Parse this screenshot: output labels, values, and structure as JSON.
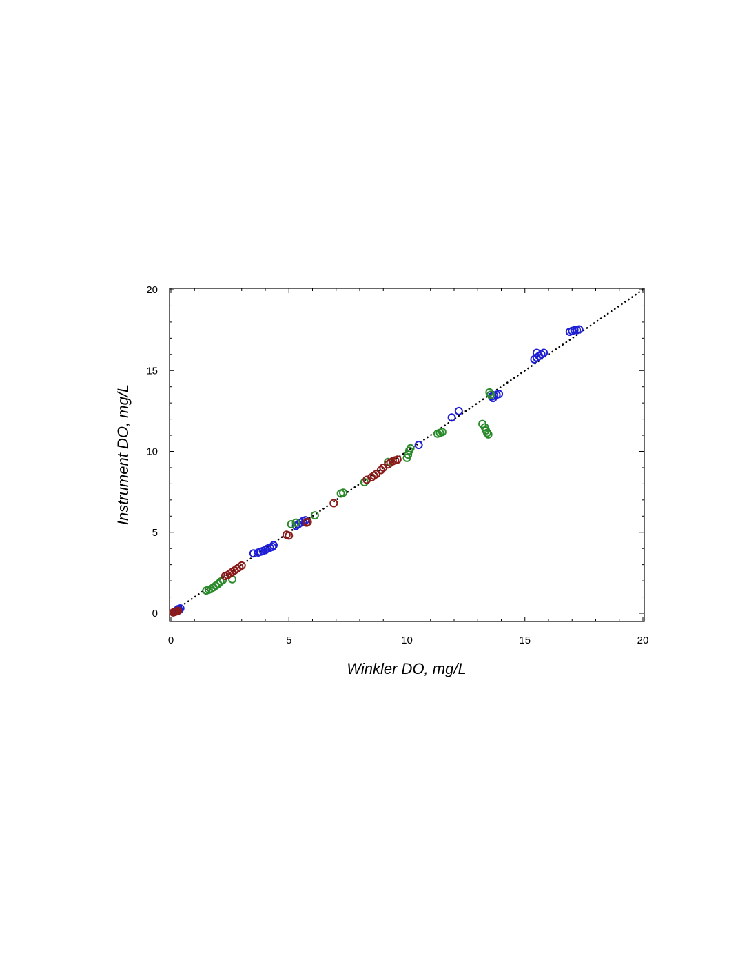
{
  "chart_data": {
    "type": "scatter",
    "title": "",
    "xlabel": "Winkler DO, mg/L",
    "ylabel": "Instrument DO, mg/L",
    "xlim": [
      0,
      20
    ],
    "ylim": [
      0,
      20
    ],
    "x_ticks": [
      "0",
      "5",
      "10",
      "15",
      "20"
    ],
    "y_ticks": [
      "0",
      "5",
      "10",
      "15",
      "20"
    ],
    "grid": false,
    "legend": "none",
    "reference_line": {
      "style": "dotted",
      "color": "#000000",
      "from": [
        0,
        0
      ],
      "to": [
        20,
        20
      ]
    },
    "series": [
      {
        "color": "#1f1fd6",
        "points": [
          [
            0.3,
            0.25
          ],
          [
            0.4,
            0.3
          ],
          [
            0.35,
            0.2
          ],
          [
            3.5,
            3.7
          ],
          [
            3.7,
            3.75
          ],
          [
            3.8,
            3.8
          ],
          [
            3.9,
            3.85
          ],
          [
            4.0,
            3.9
          ],
          [
            4.1,
            4.0
          ],
          [
            4.2,
            4.05
          ],
          [
            4.3,
            4.1
          ],
          [
            4.35,
            4.2
          ],
          [
            5.3,
            5.4
          ],
          [
            5.4,
            5.5
          ],
          [
            5.5,
            5.6
          ],
          [
            5.6,
            5.7
          ],
          [
            5.7,
            5.75
          ],
          [
            10.5,
            10.4
          ],
          [
            11.9,
            12.1
          ],
          [
            12.2,
            12.5
          ],
          [
            13.6,
            13.4
          ],
          [
            13.7,
            13.45
          ],
          [
            13.8,
            13.5
          ],
          [
            13.9,
            13.55
          ],
          [
            13.65,
            13.3
          ],
          [
            15.4,
            15.7
          ],
          [
            15.5,
            15.8
          ],
          [
            15.6,
            15.9
          ],
          [
            15.7,
            16.0
          ],
          [
            15.8,
            16.1
          ],
          [
            15.5,
            16.1
          ],
          [
            16.9,
            17.4
          ],
          [
            17.0,
            17.45
          ],
          [
            17.1,
            17.5
          ],
          [
            17.2,
            17.5
          ],
          [
            17.3,
            17.55
          ]
        ]
      },
      {
        "color": "#2b8a2b",
        "points": [
          [
            1.5,
            1.4
          ],
          [
            1.6,
            1.45
          ],
          [
            1.7,
            1.5
          ],
          [
            1.8,
            1.6
          ],
          [
            1.9,
            1.7
          ],
          [
            2.0,
            1.8
          ],
          [
            2.1,
            1.95
          ],
          [
            2.2,
            2.05
          ],
          [
            2.6,
            2.1
          ],
          [
            5.1,
            5.5
          ],
          [
            5.3,
            5.6
          ],
          [
            6.1,
            6.05
          ],
          [
            7.2,
            7.4
          ],
          [
            7.3,
            7.45
          ],
          [
            8.2,
            8.1
          ],
          [
            9.2,
            9.35
          ],
          [
            10.0,
            9.6
          ],
          [
            10.05,
            9.8
          ],
          [
            10.1,
            10.05
          ],
          [
            10.15,
            10.2
          ],
          [
            11.3,
            11.1
          ],
          [
            11.4,
            11.15
          ],
          [
            11.5,
            11.2
          ],
          [
            13.2,
            11.7
          ],
          [
            13.3,
            11.5
          ],
          [
            13.35,
            11.3
          ],
          [
            13.4,
            11.15
          ],
          [
            13.45,
            11.05
          ],
          [
            13.5,
            13.65
          ],
          [
            13.55,
            13.5
          ]
        ]
      },
      {
        "color": "#8b1a1a",
        "points": [
          [
            0.1,
            0.05
          ],
          [
            0.15,
            0.08
          ],
          [
            0.2,
            0.1
          ],
          [
            0.25,
            0.12
          ],
          [
            0.3,
            0.15
          ],
          [
            2.3,
            2.3
          ],
          [
            2.4,
            2.35
          ],
          [
            2.5,
            2.45
          ],
          [
            2.6,
            2.55
          ],
          [
            2.7,
            2.65
          ],
          [
            2.8,
            2.75
          ],
          [
            2.9,
            2.85
          ],
          [
            3.0,
            2.95
          ],
          [
            4.9,
            4.85
          ],
          [
            5.0,
            4.8
          ],
          [
            5.75,
            5.6
          ],
          [
            5.8,
            5.65
          ],
          [
            6.9,
            6.8
          ],
          [
            8.3,
            8.25
          ],
          [
            8.5,
            8.4
          ],
          [
            8.6,
            8.5
          ],
          [
            8.7,
            8.6
          ],
          [
            8.9,
            8.85
          ],
          [
            9.0,
            9.0
          ],
          [
            9.2,
            9.2
          ],
          [
            9.3,
            9.3
          ],
          [
            9.4,
            9.4
          ],
          [
            9.5,
            9.45
          ],
          [
            9.6,
            9.5
          ]
        ]
      }
    ]
  }
}
